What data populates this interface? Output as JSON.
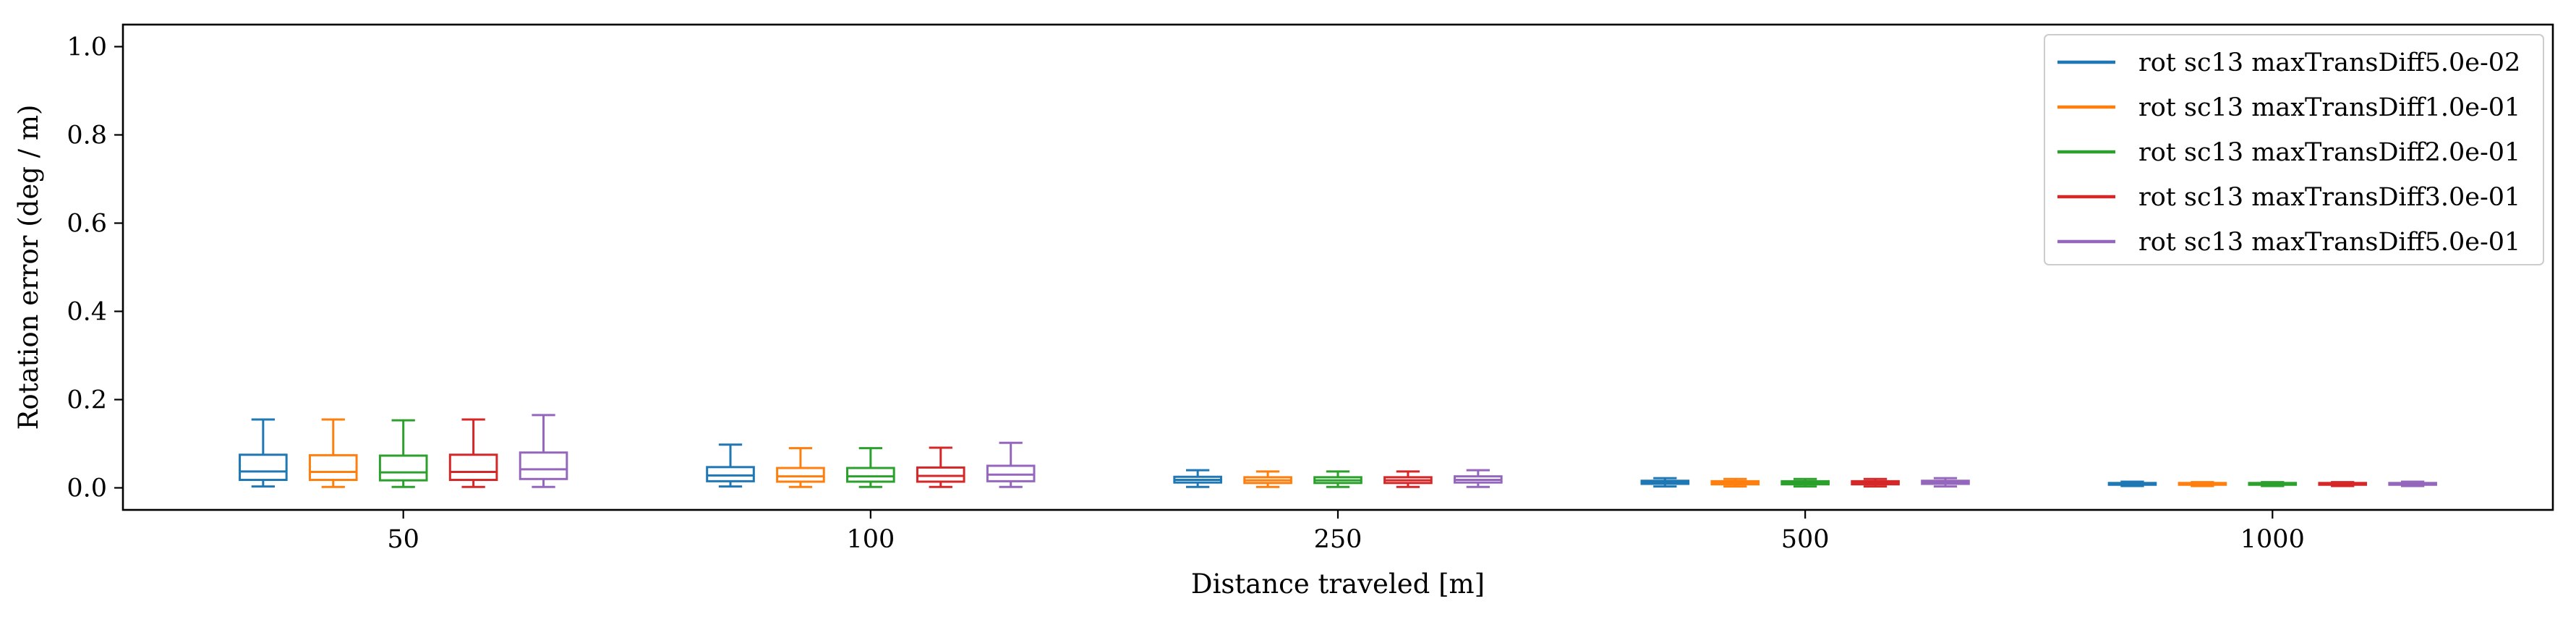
{
  "chart_data": {
    "type": "box",
    "xlabel": "Distance traveled [m]",
    "ylabel": "Rotation error (deg / m)",
    "ylim": [
      -0.05,
      1.05
    ],
    "yticks": [
      "0.0",
      "0.2",
      "0.4",
      "0.6",
      "0.8",
      "1.0"
    ],
    "ytick_values": [
      0.0,
      0.2,
      0.4,
      0.6,
      0.8,
      1.0
    ],
    "categories": [
      "50",
      "100",
      "250",
      "500",
      "1000"
    ],
    "grid": false,
    "legend_position": "top-right",
    "series": [
      {
        "name": "rot sc13 maxTransDiff5.0e-02",
        "color": "#1f77b4",
        "boxes": [
          {
            "whislo": 0.003,
            "q1": 0.018,
            "med": 0.037,
            "q3": 0.075,
            "whishi": 0.155
          },
          {
            "whislo": 0.003,
            "q1": 0.015,
            "med": 0.028,
            "q3": 0.047,
            "whishi": 0.098
          },
          {
            "whislo": 0.002,
            "q1": 0.012,
            "med": 0.018,
            "q3": 0.025,
            "whishi": 0.04
          },
          {
            "whislo": 0.003,
            "q1": 0.009,
            "med": 0.012,
            "q3": 0.016,
            "whishi": 0.022
          },
          {
            "whislo": 0.004,
            "q1": 0.007,
            "med": 0.009,
            "q3": 0.011,
            "whishi": 0.014
          }
        ]
      },
      {
        "name": "rot sc13 maxTransDiff1.0e-01",
        "color": "#ff7f0e",
        "boxes": [
          {
            "whislo": 0.002,
            "q1": 0.018,
            "med": 0.036,
            "q3": 0.074,
            "whishi": 0.155
          },
          {
            "whislo": 0.002,
            "q1": 0.014,
            "med": 0.026,
            "q3": 0.045,
            "whishi": 0.09
          },
          {
            "whislo": 0.002,
            "q1": 0.011,
            "med": 0.017,
            "q3": 0.024,
            "whishi": 0.037
          },
          {
            "whislo": 0.003,
            "q1": 0.008,
            "med": 0.011,
            "q3": 0.015,
            "whishi": 0.02
          },
          {
            "whislo": 0.004,
            "q1": 0.007,
            "med": 0.009,
            "q3": 0.011,
            "whishi": 0.013
          }
        ]
      },
      {
        "name": "rot sc13 maxTransDiff2.0e-01",
        "color": "#2ca02c",
        "boxes": [
          {
            "whislo": 0.002,
            "q1": 0.017,
            "med": 0.035,
            "q3": 0.073,
            "whishi": 0.153
          },
          {
            "whislo": 0.002,
            "q1": 0.014,
            "med": 0.026,
            "q3": 0.045,
            "whishi": 0.09
          },
          {
            "whislo": 0.002,
            "q1": 0.011,
            "med": 0.017,
            "q3": 0.024,
            "whishi": 0.037
          },
          {
            "whislo": 0.003,
            "q1": 0.008,
            "med": 0.011,
            "q3": 0.015,
            "whishi": 0.02
          },
          {
            "whislo": 0.004,
            "q1": 0.007,
            "med": 0.009,
            "q3": 0.011,
            "whishi": 0.013
          }
        ]
      },
      {
        "name": "rot sc13 maxTransDiff3.0e-01",
        "color": "#d62728",
        "boxes": [
          {
            "whislo": 0.002,
            "q1": 0.018,
            "med": 0.036,
            "q3": 0.075,
            "whishi": 0.155
          },
          {
            "whislo": 0.002,
            "q1": 0.014,
            "med": 0.027,
            "q3": 0.046,
            "whishi": 0.091
          },
          {
            "whislo": 0.002,
            "q1": 0.011,
            "med": 0.017,
            "q3": 0.024,
            "whishi": 0.037
          },
          {
            "whislo": 0.003,
            "q1": 0.008,
            "med": 0.011,
            "q3": 0.015,
            "whishi": 0.02
          },
          {
            "whislo": 0.004,
            "q1": 0.007,
            "med": 0.009,
            "q3": 0.011,
            "whishi": 0.013
          }
        ]
      },
      {
        "name": "rot sc13 maxTransDiff5.0e-01",
        "color": "#9467bd",
        "boxes": [
          {
            "whislo": 0.002,
            "q1": 0.02,
            "med": 0.042,
            "q3": 0.08,
            "whishi": 0.165
          },
          {
            "whislo": 0.002,
            "q1": 0.015,
            "med": 0.03,
            "q3": 0.05,
            "whishi": 0.102
          },
          {
            "whislo": 0.002,
            "q1": 0.012,
            "med": 0.018,
            "q3": 0.026,
            "whishi": 0.04
          },
          {
            "whislo": 0.003,
            "q1": 0.009,
            "med": 0.012,
            "q3": 0.016,
            "whishi": 0.022
          },
          {
            "whislo": 0.004,
            "q1": 0.007,
            "med": 0.009,
            "q3": 0.011,
            "whishi": 0.014
          }
        ]
      }
    ]
  }
}
